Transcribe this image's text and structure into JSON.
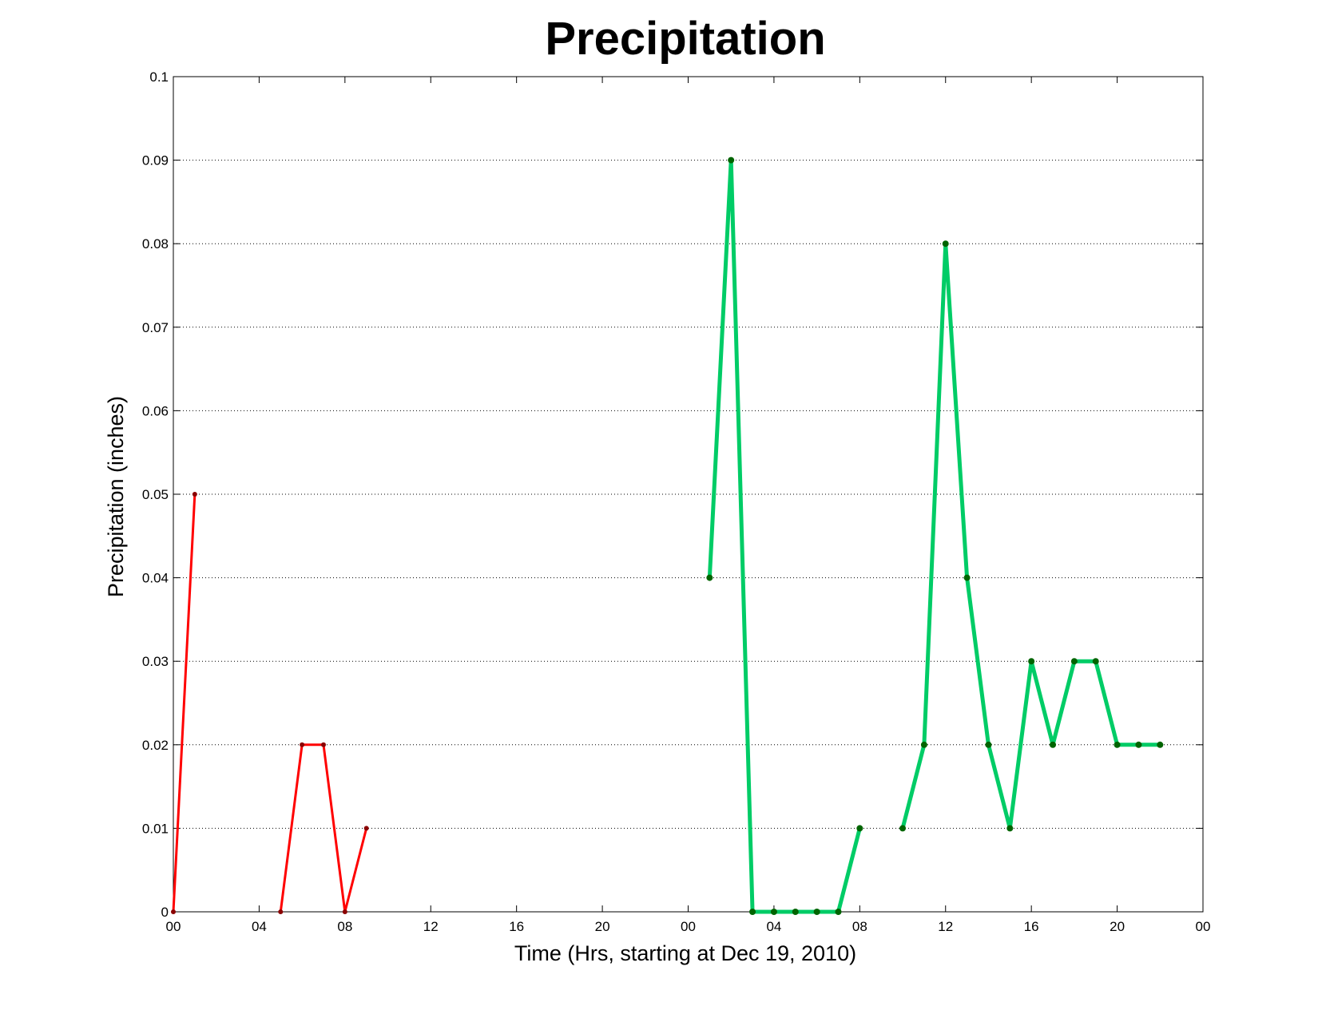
{
  "chart_data": {
    "type": "line",
    "title": "Precipitation",
    "xlabel": "Time (Hrs, starting at Dec 19, 2010)",
    "ylabel": "Precipitation (inches)",
    "xlim": [
      0,
      48
    ],
    "ylim": [
      0,
      0.1
    ],
    "grid": "horizontal",
    "x_ticks": [
      0,
      4,
      8,
      12,
      16,
      20,
      24,
      28,
      32,
      36,
      40,
      44,
      48
    ],
    "x_tick_labels": [
      "00",
      "04",
      "08",
      "12",
      "16",
      "20",
      "00",
      "04",
      "08",
      "12",
      "16",
      "20",
      "00"
    ],
    "y_ticks": [
      0,
      0.01,
      0.02,
      0.03,
      0.04,
      0.05,
      0.06,
      0.07,
      0.08,
      0.09,
      0.1
    ],
    "y_tick_labels": [
      "0",
      "0.01",
      "0.02",
      "0.03",
      "0.04",
      "0.05",
      "0.06",
      "0.07",
      "0.08",
      "0.09",
      "0.1"
    ],
    "series": [
      {
        "color": "#ff0000",
        "marker_color": "#8b0000",
        "segments": [
          [
            [
              0,
              0
            ],
            [
              1,
              0.05
            ]
          ],
          [
            [
              5,
              0
            ],
            [
              6,
              0.02
            ],
            [
              7,
              0.02
            ],
            [
              8,
              0
            ],
            [
              9,
              0.01
            ]
          ]
        ]
      },
      {
        "color": "#00cc66",
        "marker_color": "#006400",
        "segments": [
          [
            [
              25,
              0.04
            ],
            [
              26,
              0.09
            ],
            [
              27,
              0
            ],
            [
              28,
              0
            ],
            [
              29,
              0
            ],
            [
              30,
              0
            ],
            [
              31,
              0
            ],
            [
              32,
              0.01
            ]
          ],
          [
            [
              34,
              0.01
            ],
            [
              35,
              0.02
            ],
            [
              36,
              0.08
            ],
            [
              37,
              0.04
            ],
            [
              38,
              0.02
            ],
            [
              39,
              0.01
            ],
            [
              40,
              0.03
            ],
            [
              41,
              0.02
            ],
            [
              42,
              0.03
            ],
            [
              43,
              0.03
            ],
            [
              44,
              0.02
            ],
            [
              45,
              0.02
            ],
            [
              46,
              0.02
            ]
          ]
        ]
      }
    ]
  }
}
